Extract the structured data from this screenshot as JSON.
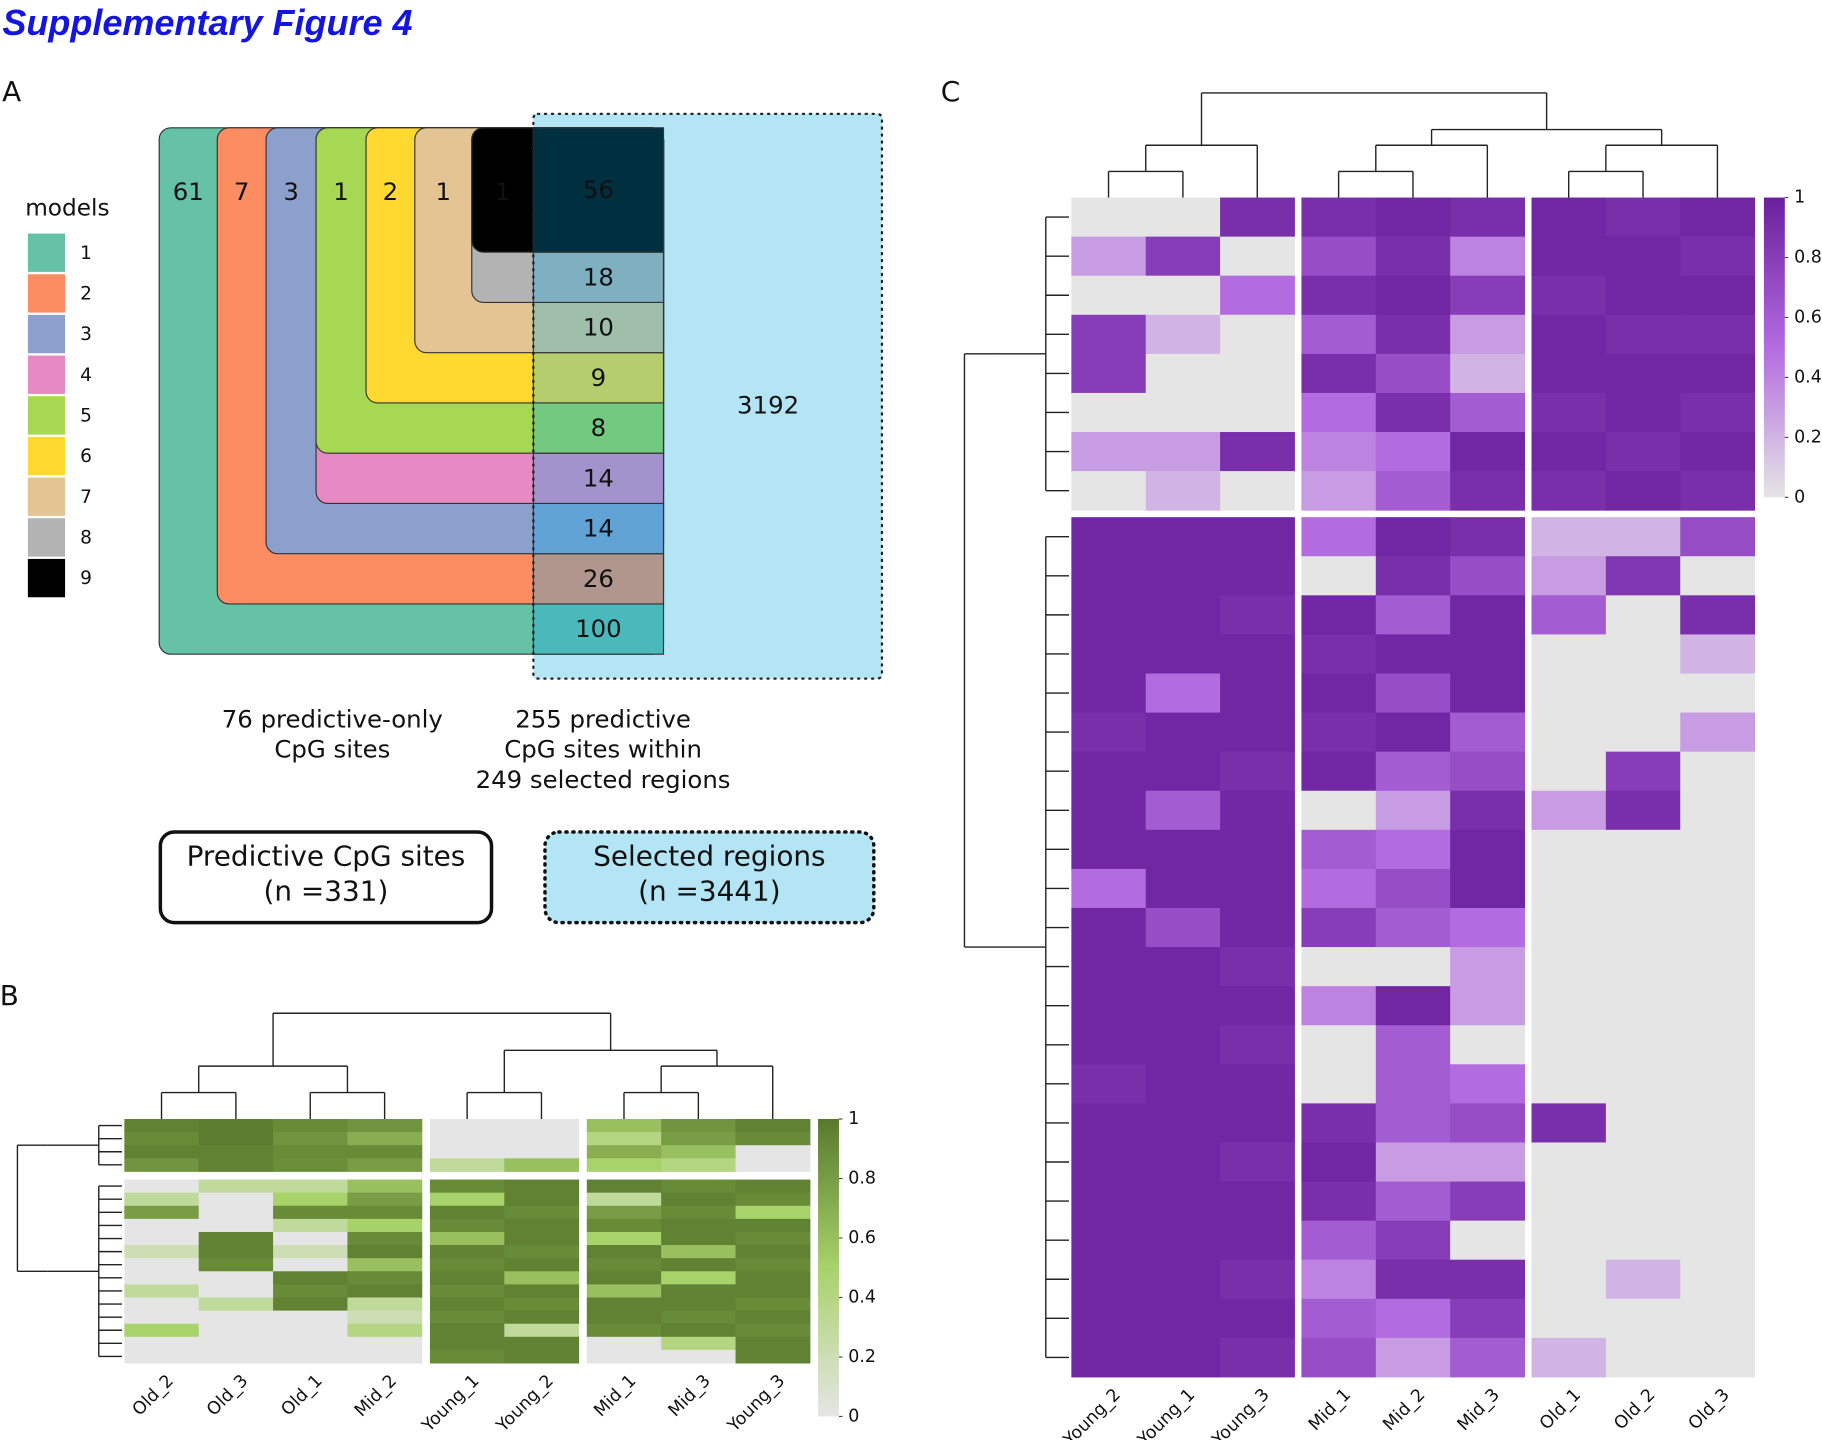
{
  "title": "Supplementary Figure 4",
  "chart_data": [
    {
      "type": "nested-sets",
      "label": "A",
      "legend_title": "models",
      "sets": [
        {
          "name": "1",
          "color": "#66c2a5",
          "only": 61,
          "shared": 100,
          "shared_color": "#4ab9bb"
        },
        {
          "name": "2",
          "color": "#fc8d62",
          "only": 7,
          "shared": 26,
          "shared_color": "#b0968c"
        },
        {
          "name": "3",
          "color": "#8da0cb",
          "only": 3,
          "shared": 14,
          "shared_color": "#62a3d6"
        },
        {
          "name": "4",
          "color": "#e78ac3",
          "only": null,
          "shared": 14,
          "shared_color": "#a293cc"
        },
        {
          "name": "5",
          "color": "#a6d854",
          "only": 1,
          "shared": 8,
          "shared_color": "#72c97f"
        },
        {
          "name": "6",
          "color": "#ffd92f",
          "only": 2,
          "shared": 9,
          "shared_color": "#b5cd6c"
        },
        {
          "name": "7",
          "color": "#e5c494",
          "only": 1,
          "shared": 10,
          "shared_color": "#9fbfaa"
        },
        {
          "name": "8",
          "color": "#b3b3b3",
          "only": null,
          "shared": 18,
          "shared_color": "#7fb0c2"
        },
        {
          "name": "9",
          "color": "#000000",
          "only": 1,
          "shared": 56,
          "shared_color": "#002f40"
        }
      ],
      "outside_count": 3192,
      "outside_color": "#b3e5f5",
      "notes": [
        [
          "76 predictive-only",
          "CpG sites"
        ],
        [
          "255 predictive",
          "CpG sites within",
          "249 selected regions"
        ]
      ],
      "boxes": [
        [
          "Predictive CpG sites",
          "(n =331)"
        ],
        [
          "Selected regions",
          "(n =3441)"
        ]
      ]
    },
    {
      "type": "heatmap",
      "label": "B",
      "categories": [
        [
          "Old_2",
          "Old_3",
          "Old_1",
          "Mid_2"
        ],
        [
          "Young_1",
          "Young_2"
        ],
        [
          "Mid_1",
          "Mid_3",
          "Young_3"
        ]
      ],
      "colors": [
        "#e5e5e5",
        "#a8d26a",
        "#58792c"
      ],
      "ylim": [
        0,
        1
      ],
      "yticks": [
        0,
        0.2,
        0.4,
        0.6,
        0.8,
        1
      ],
      "values": [
        [
          [
            0.95,
            0.97,
            0.9,
            0.85,
            0,
            0,
            0.6,
            0.85,
            0.95
          ],
          [
            0.9,
            0.97,
            0.85,
            0.7,
            0,
            0,
            0.4,
            0.8,
            0.9
          ],
          [
            0.95,
            0.95,
            0.9,
            0.9,
            0,
            0,
            0.7,
            0.6,
            0
          ],
          [
            0.85,
            0.95,
            0.88,
            0.8,
            0.3,
            0.6,
            0.5,
            0.4,
            0
          ]
        ],
        [
          [
            0,
            0.3,
            0.3,
            0.6,
            0.9,
            0.95,
            0.95,
            0.9,
            0.95
          ],
          [
            0.3,
            0,
            0.5,
            0.8,
            0.5,
            0.95,
            0.3,
            0.95,
            0.9
          ],
          [
            0.8,
            0,
            0.9,
            0.9,
            0.95,
            0.9,
            0.8,
            0.9,
            0.5
          ],
          [
            0,
            0,
            0.3,
            0.5,
            0.9,
            0.95,
            0.9,
            0.95,
            0.95
          ],
          [
            0,
            0.95,
            0,
            0.9,
            0.6,
            0.95,
            0.5,
            0.95,
            0.9
          ],
          [
            0.2,
            0.95,
            0.2,
            0.95,
            0.95,
            0.9,
            0.95,
            0.6,
            0.95
          ],
          [
            0,
            0.9,
            0,
            0.6,
            0.9,
            0.95,
            0.9,
            0.95,
            0.9
          ],
          [
            0,
            0,
            0.95,
            0.9,
            0.95,
            0.6,
            0.95,
            0.5,
            0.95
          ],
          [
            0.3,
            0,
            0.9,
            0.95,
            0.9,
            0.95,
            0.6,
            0.95,
            0.95
          ],
          [
            0,
            0.3,
            0.95,
            0.3,
            0.95,
            0.9,
            0.95,
            0.95,
            0.9
          ],
          [
            0,
            0,
            0,
            0.2,
            0.9,
            0.95,
            0.95,
            0.9,
            0.95
          ],
          [
            0.5,
            0,
            0,
            0.4,
            0.95,
            0.3,
            0.9,
            0.95,
            0.9
          ],
          [
            0,
            0,
            0,
            0,
            0.95,
            0.95,
            0,
            0.4,
            0.95
          ],
          [
            0,
            0,
            0,
            0,
            0.9,
            0.95,
            0,
            0,
            0.95
          ]
        ]
      ]
    },
    {
      "type": "heatmap",
      "label": "C",
      "categories": [
        [
          "Young_2",
          "Young_1",
          "Young_3"
        ],
        [
          "Mid_1",
          "Mid_2",
          "Mid_3"
        ],
        [
          "Old_1",
          "Old_2",
          "Old_3"
        ]
      ],
      "colors": [
        "#e5e5e5",
        "#b36be0",
        "#6a1f9c"
      ],
      "ylim": [
        0,
        1
      ],
      "yticks": [
        0,
        0.2,
        0.4,
        0.6,
        0.8,
        1
      ],
      "values": [
        [
          [
            0,
            0,
            0.9,
            0.9,
            0.95,
            0.9,
            0.95,
            0.9,
            0.95
          ],
          [
            0.3,
            0.8,
            0,
            0.7,
            0.9,
            0.4,
            0.95,
            0.95,
            0.9
          ],
          [
            0,
            0,
            0.5,
            0.9,
            0.95,
            0.8,
            0.9,
            0.95,
            0.95
          ],
          [
            0.8,
            0.2,
            0,
            0.6,
            0.9,
            0.3,
            0.95,
            0.9,
            0.9
          ],
          [
            0.8,
            0,
            0,
            0.9,
            0.7,
            0.2,
            0.95,
            0.95,
            0.95
          ],
          [
            0,
            0,
            0,
            0.5,
            0.9,
            0.6,
            0.9,
            0.95,
            0.9
          ],
          [
            0.3,
            0.3,
            0.9,
            0.4,
            0.5,
            0.95,
            0.95,
            0.9,
            0.95
          ],
          [
            0,
            0.2,
            0,
            0.3,
            0.6,
            0.9,
            0.9,
            0.95,
            0.9
          ]
        ],
        [
          [
            0.95,
            0.95,
            0.95,
            0.5,
            0.95,
            0.9,
            0.2,
            0.2,
            0.7
          ],
          [
            0.95,
            0.95,
            0.95,
            0,
            0.9,
            0.7,
            0.3,
            0.85,
            0
          ],
          [
            0.95,
            0.95,
            0.9,
            0.95,
            0.6,
            0.95,
            0.6,
            0,
            0.9
          ],
          [
            0.95,
            0.95,
            0.95,
            0.9,
            0.95,
            0.95,
            0,
            0,
            0.2
          ],
          [
            0.95,
            0.5,
            0.95,
            0.95,
            0.7,
            0.95,
            0,
            0,
            0
          ],
          [
            0.9,
            0.95,
            0.95,
            0.9,
            0.95,
            0.6,
            0,
            0,
            0.3
          ],
          [
            0.95,
            0.95,
            0.9,
            0.95,
            0.6,
            0.7,
            0,
            0.8,
            0
          ],
          [
            0.95,
            0.6,
            0.95,
            0,
            0.3,
            0.9,
            0.3,
            0.9,
            0
          ],
          [
            0.95,
            0.95,
            0.95,
            0.6,
            0.5,
            0.95,
            0,
            0,
            0
          ],
          [
            0.5,
            0.95,
            0.95,
            0.5,
            0.7,
            0.95,
            0,
            0,
            0
          ],
          [
            0.95,
            0.7,
            0.95,
            0.8,
            0.6,
            0.5,
            0,
            0,
            0
          ],
          [
            0.95,
            0.95,
            0.9,
            0,
            0,
            0.3,
            0,
            0,
            0
          ],
          [
            0.95,
            0.95,
            0.95,
            0.4,
            0.95,
            0.3,
            0,
            0,
            0
          ],
          [
            0.95,
            0.95,
            0.9,
            0,
            0.6,
            0,
            0,
            0,
            0
          ],
          [
            0.9,
            0.95,
            0.95,
            0,
            0.6,
            0.5,
            0,
            0,
            0
          ],
          [
            0.95,
            0.95,
            0.95,
            0.9,
            0.6,
            0.7,
            0.9,
            0,
            0
          ],
          [
            0.95,
            0.95,
            0.9,
            0.95,
            0.3,
            0.3,
            0,
            0,
            0
          ],
          [
            0.95,
            0.95,
            0.95,
            0.9,
            0.6,
            0.8,
            0,
            0,
            0
          ],
          [
            0.95,
            0.95,
            0.95,
            0.6,
            0.8,
            0,
            0,
            0,
            0
          ],
          [
            0.95,
            0.95,
            0.9,
            0.4,
            0.9,
            0.9,
            0,
            0.2,
            0
          ],
          [
            0.95,
            0.95,
            0.95,
            0.6,
            0.5,
            0.8,
            0,
            0,
            0
          ],
          [
            0.95,
            0.95,
            0.9,
            0.7,
            0.3,
            0.6,
            0.2,
            0,
            0
          ]
        ]
      ]
    }
  ]
}
